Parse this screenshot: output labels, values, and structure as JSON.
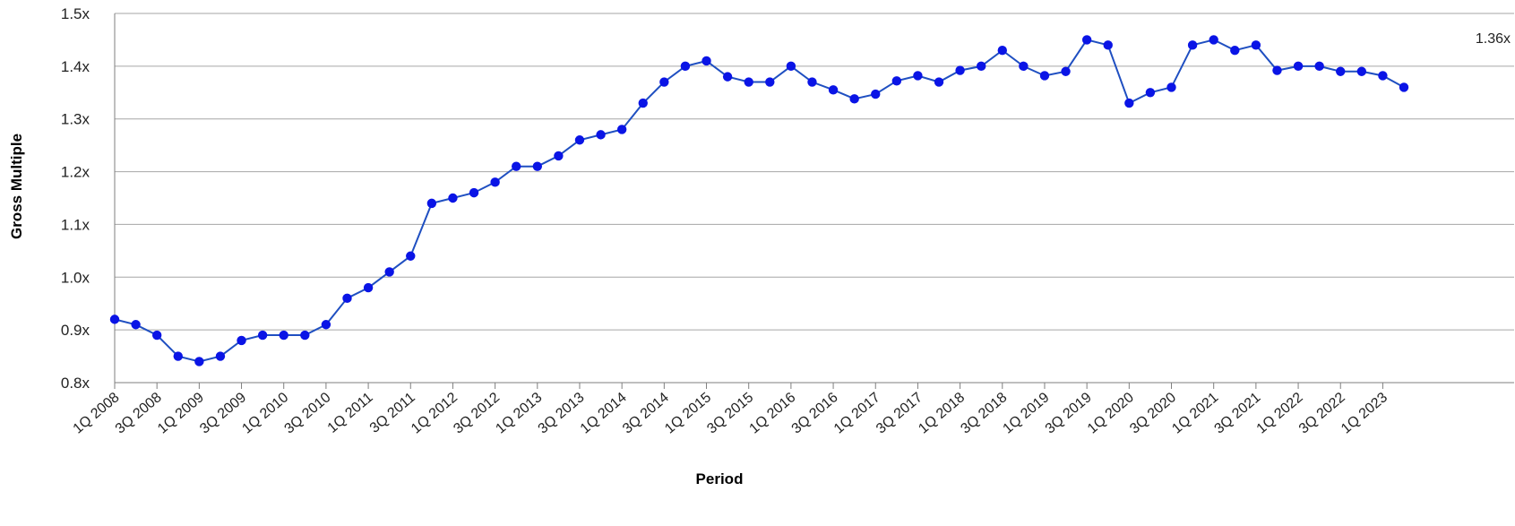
{
  "chart_data": {
    "type": "line",
    "title": "",
    "xlabel": "Period",
    "ylabel": "Gross Multiple",
    "ylim": [
      0.8,
      1.5
    ],
    "y_ticks": [
      "0.8x",
      "0.9x",
      "1.0x",
      "1.1x",
      "1.2x",
      "1.3x",
      "1.4x",
      "1.5x"
    ],
    "grid": true,
    "legend": "none",
    "line_color": "#1f4fc1",
    "marker_color": "#0a14e6",
    "x_tick_labels": [
      "1Q 2008",
      "3Q 2008",
      "1Q 2009",
      "3Q 2009",
      "1Q 2010",
      "3Q 2010",
      "1Q 2011",
      "3Q 2011",
      "1Q 2012",
      "3Q 2012",
      "1Q 2013",
      "3Q 2013",
      "1Q 2014",
      "3Q 2014",
      "1Q 2015",
      "3Q 2015",
      "1Q 2016",
      "3Q 2016",
      "1Q 2017",
      "3Q 2017",
      "1Q 2018",
      "3Q 2018",
      "1Q 2019",
      "3Q 2019",
      "1Q 2020",
      "3Q 2020",
      "1Q 2021",
      "3Q 2021",
      "1Q 2022",
      "3Q 2022",
      "1Q 2023"
    ],
    "x": [
      "1Q 2008",
      "2Q 2008",
      "3Q 2008",
      "4Q 2008",
      "1Q 2009",
      "2Q 2009",
      "3Q 2009",
      "4Q 2009",
      "1Q 2010",
      "2Q 2010",
      "3Q 2010",
      "4Q 2010",
      "1Q 2011",
      "2Q 2011",
      "3Q 2011",
      "4Q 2011",
      "1Q 2012",
      "2Q 2012",
      "3Q 2012",
      "4Q 2012",
      "1Q 2013",
      "2Q 2013",
      "3Q 2013",
      "4Q 2013",
      "1Q 2014",
      "2Q 2014",
      "3Q 2014",
      "4Q 2014",
      "1Q 2015",
      "2Q 2015",
      "3Q 2015",
      "4Q 2015",
      "1Q 2016",
      "2Q 2016",
      "3Q 2016",
      "4Q 2016",
      "1Q 2017",
      "2Q 2017",
      "3Q 2017",
      "4Q 2017",
      "1Q 2018",
      "2Q 2018",
      "3Q 2018",
      "4Q 2018",
      "1Q 2019",
      "2Q 2019",
      "3Q 2019",
      "4Q 2019",
      "1Q 2020",
      "2Q 2020",
      "3Q 2020",
      "4Q 2020",
      "1Q 2021",
      "2Q 2021",
      "3Q 2021",
      "4Q 2021",
      "1Q 2022",
      "2Q 2022",
      "3Q 2022",
      "4Q 2022",
      "1Q 2023",
      "2Q 2023"
    ],
    "values": [
      0.92,
      0.91,
      0.89,
      0.85,
      0.84,
      0.85,
      0.88,
      0.89,
      0.89,
      0.89,
      0.91,
      0.96,
      0.98,
      1.01,
      1.04,
      1.14,
      1.15,
      1.16,
      1.18,
      1.21,
      1.21,
      1.23,
      1.26,
      1.27,
      1.28,
      1.33,
      1.37,
      1.4,
      1.41,
      1.38,
      1.37,
      1.37,
      1.4,
      1.37,
      1.355,
      1.338,
      1.347,
      1.372,
      1.382,
      1.37,
      1.392,
      1.4,
      1.43,
      1.4,
      1.382,
      1.39,
      1.45,
      1.44,
      1.33,
      1.35,
      1.36,
      1.44,
      1.45,
      1.43,
      1.44,
      1.392,
      1.4,
      1.4,
      1.39,
      1.39,
      1.382,
      1.36
    ],
    "annotation": "1.36x"
  }
}
